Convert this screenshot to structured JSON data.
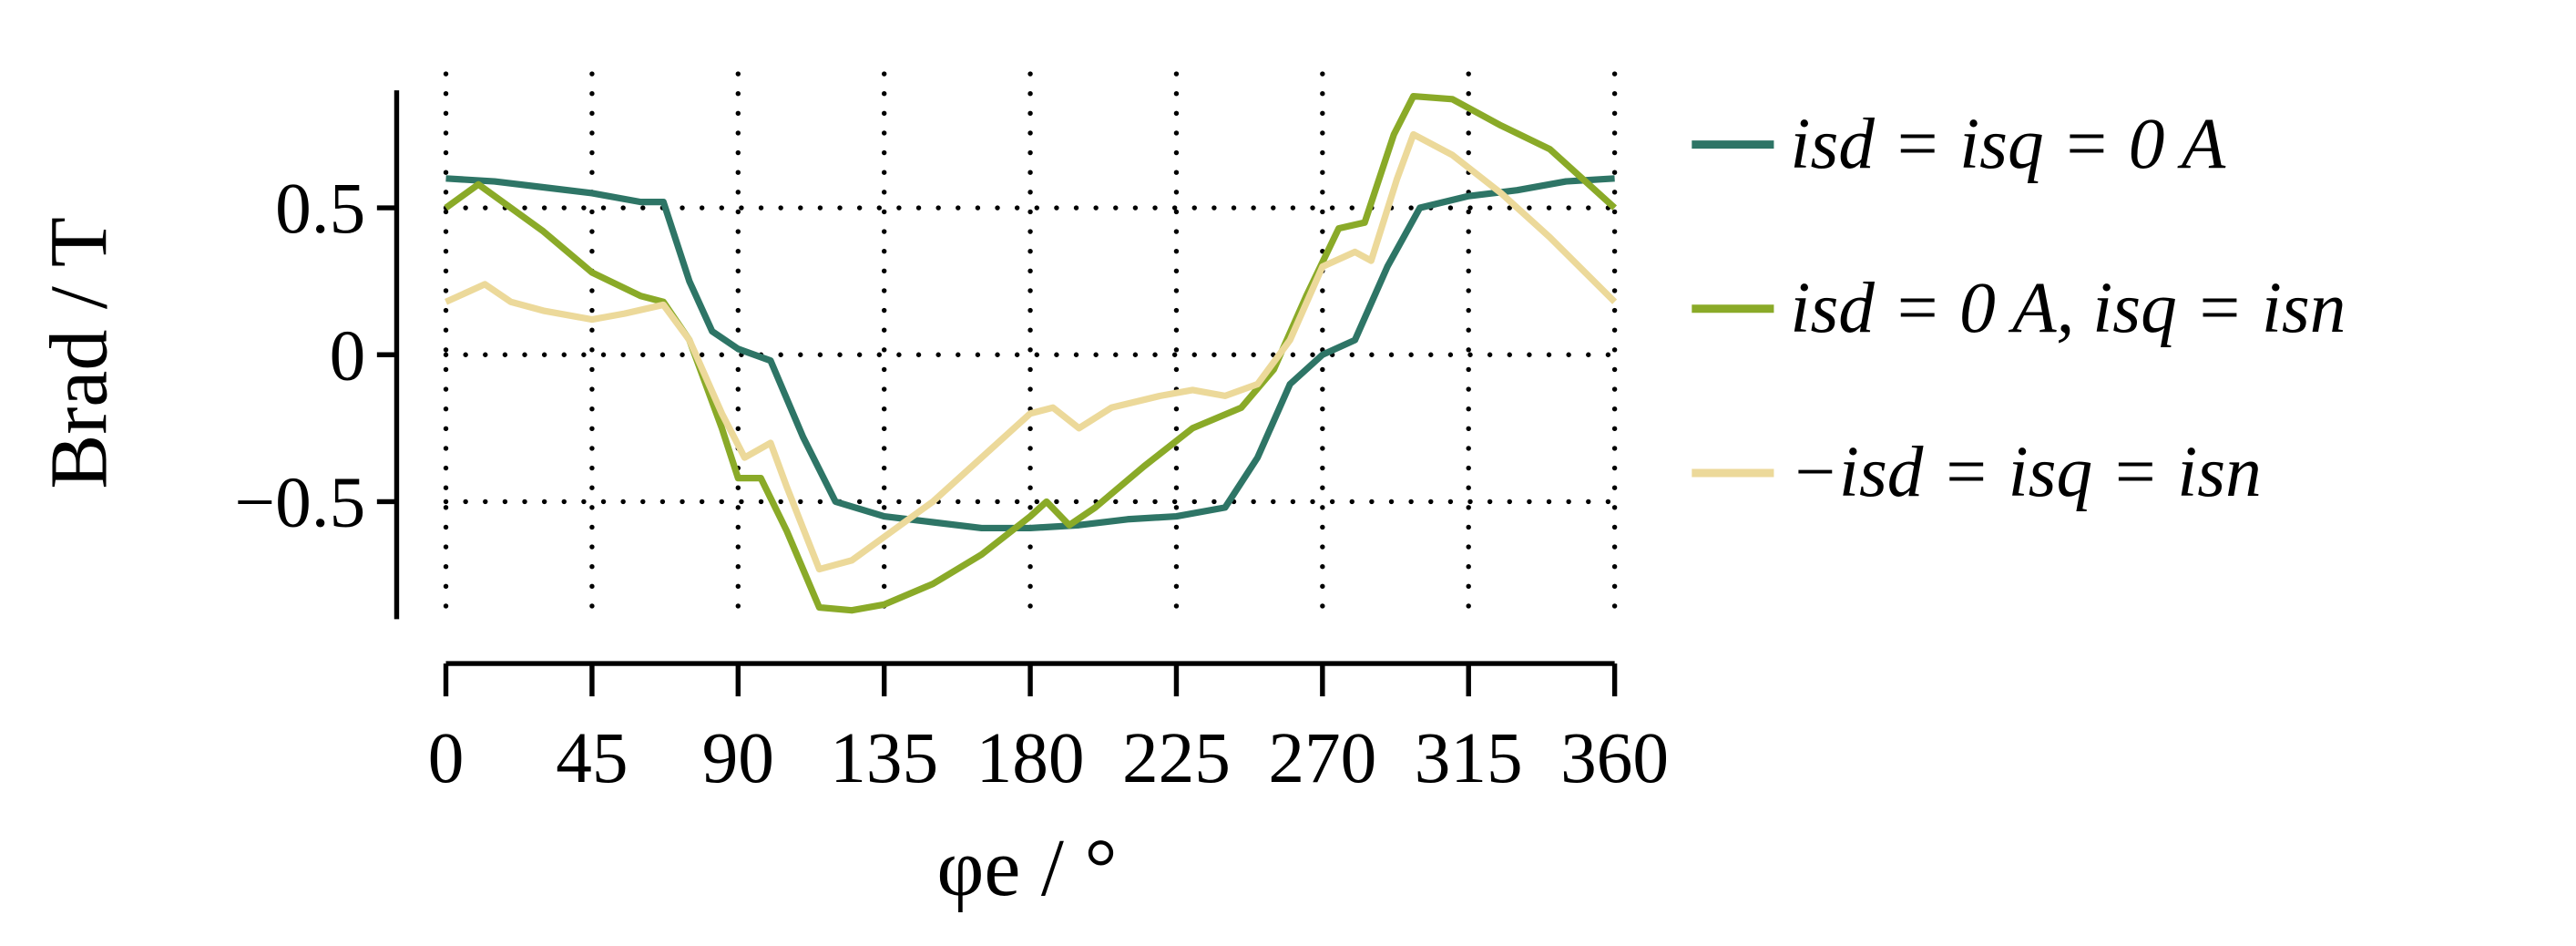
{
  "chart_data": {
    "type": "line",
    "xlabel": "φe / °",
    "ylabel": "Brad / T",
    "xlim": [
      0,
      360
    ],
    "ylim": [
      -0.9,
      0.9
    ],
    "xticks": [
      0,
      45,
      90,
      135,
      180,
      225,
      270,
      315,
      360
    ],
    "yticks": [
      {
        "value": -0.5,
        "label": "−0.5"
      },
      0,
      0.5
    ],
    "grid": true,
    "legend": "right",
    "series": [
      {
        "name": "isd = isq = 0 A",
        "color": "#2e7566",
        "x": [
          0,
          15,
          30,
          45,
          60,
          67,
          75,
          82,
          90,
          100,
          110,
          120,
          135,
          150,
          165,
          180,
          195,
          210,
          225,
          240,
          250,
          260,
          270,
          280,
          290,
          300,
          315,
          330,
          345,
          360
        ],
        "values": [
          0.6,
          0.59,
          0.57,
          0.55,
          0.52,
          0.52,
          0.25,
          0.08,
          0.02,
          -0.02,
          -0.28,
          -0.5,
          -0.55,
          -0.57,
          -0.59,
          -0.59,
          -0.58,
          -0.56,
          -0.55,
          -0.52,
          -0.35,
          -0.1,
          0,
          0.05,
          0.3,
          0.5,
          0.54,
          0.56,
          0.59,
          0.6
        ]
      },
      {
        "name": "isd = 0 A, isq = isn",
        "color": "#8aaa28",
        "x": [
          0,
          10,
          20,
          30,
          45,
          60,
          67,
          75,
          85,
          90,
          97,
          105,
          115,
          125,
          135,
          150,
          165,
          180,
          185,
          192,
          200,
          215,
          230,
          245,
          255,
          265,
          275,
          283,
          292,
          298,
          310,
          325,
          340,
          360
        ],
        "values": [
          0.5,
          0.58,
          0.5,
          0.42,
          0.28,
          0.2,
          0.18,
          0.05,
          -0.25,
          -0.42,
          -0.42,
          -0.6,
          -0.86,
          -0.87,
          -0.85,
          -0.78,
          -0.68,
          -0.55,
          -0.5,
          -0.58,
          -0.52,
          -0.38,
          -0.25,
          -0.18,
          -0.05,
          0.2,
          0.43,
          0.45,
          0.75,
          0.88,
          0.87,
          0.78,
          0.7,
          0.5
        ]
      },
      {
        "name": "−isd = isq = isn",
        "color": "#ecd99a",
        "x": [
          0,
          12,
          20,
          30,
          45,
          55,
          67,
          75,
          85,
          92,
          100,
          105,
          115,
          125,
          135,
          150,
          165,
          180,
          187,
          195,
          205,
          220,
          230,
          240,
          250,
          260,
          270,
          280,
          285,
          293,
          298,
          310,
          325,
          340,
          360
        ],
        "values": [
          0.18,
          0.24,
          0.18,
          0.15,
          0.12,
          0.14,
          0.17,
          0.05,
          -0.2,
          -0.35,
          -0.3,
          -0.45,
          -0.73,
          -0.7,
          -0.62,
          -0.5,
          -0.35,
          -0.2,
          -0.18,
          -0.25,
          -0.18,
          -0.14,
          -0.12,
          -0.14,
          -0.1,
          0.05,
          0.3,
          0.35,
          0.32,
          0.6,
          0.75,
          0.68,
          0.55,
          0.4,
          0.18
        ]
      }
    ]
  }
}
